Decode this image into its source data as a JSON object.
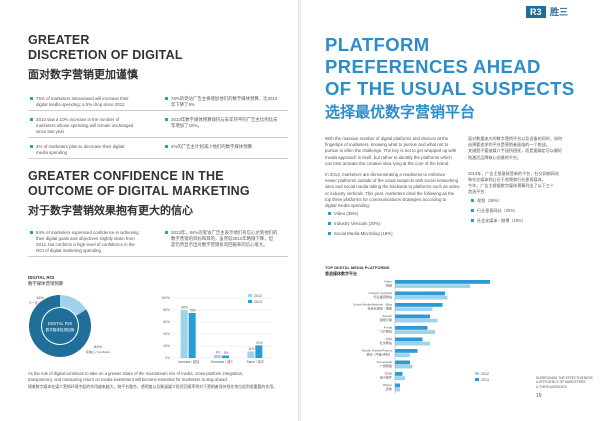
{
  "left": {
    "sec1": {
      "title_en_1": "GREATER",
      "title_en_2": "DISCRETION OF DIGITAL",
      "title_cn": "面对数字营销更加谨慎",
      "bullets_en": [
        [
          "75% of marketers interviewed will increase their",
          "digital media spending; a 5% drop since 2012"
        ],
        [
          "2013 saw a 10% increase in the number of",
          "marketers whose spending will remain unchanged",
          "since last year"
        ],
        [
          "4% of marketers plan to decrease their digital",
          "media spending"
        ]
      ],
      "bullets_cn": [
        [
          "75%的受访广告主将增加他们的数字媒体预算，比2012",
          "年下降了5%"
        ],
        [
          "2013年数字媒体预算保持与去年持平的广告主比例比去",
          "年增加了10%。"
        ],
        [
          "4%的广告主计划减少他们的数字媒体预算"
        ]
      ]
    },
    "sec2": {
      "title_en_1": "GREATER CONFIDENCE IN THE",
      "title_en_2": "OUTCOME OF DIGITAL MARKETING",
      "title_cn": "对于数字营销效果抱有更大的信心",
      "bullets_en": [
        [
          "84% of marketers expressed confidence in achieving",
          "their digital goals and objectives slightly down from",
          "2012, but confirms a high level of confidence in the",
          "ROI of digital marketing spending"
        ]
      ],
      "bullets_cn": [
        [
          "2013年，84%的受访广告主表示他们有信心达到他们的",
          "数字营销的目标和目的，虽然较2012年略微下降，但",
          "是仍然显示出对数字营销投资回报率的信心很大。"
        ]
      ]
    },
    "chart": {
      "title_en": "DIGITAL ROI",
      "title_cn": "数字媒体营销预算",
      "donut_center_1": "DIGITAL ROI",
      "donut_center_2": "数字媒体投资回报",
      "donut_labels": [
        [
          "16%",
          "不一定 / Not sure"
        ],
        [
          "84%",
          "有信心 / Confident"
        ]
      ],
      "legend": [
        "2012",
        "2013"
      ],
      "categories": [
        "Increase / 增加",
        "Decrease / 减少",
        "Same / 持平"
      ],
      "yticks": [
        "100%",
        "80%",
        "60%",
        "40%",
        "20%",
        "0%"
      ],
      "value_labels": [
        "80%",
        "75%",
        "4%",
        "5%",
        "11%",
        "21%"
      ]
    },
    "footer": {
      "en_1": "As the role of digital continues to take on a greater share of the mainstream mix of media, cross-platform integration,",
      "en_2": "transparency, and measuring return on media investment will become essential for marketers to stay ahead.",
      "cn": "随着数字媒体在媒介营销环境中起的作用越来越大，跨平台整合，透明度以及衡量媒介投资回报率将对于营销者保持领先地位起到很重要的作用。"
    }
  },
  "right": {
    "logo": "R3",
    "logo_cn": "胜三",
    "title_en_1": "PLATFORM",
    "title_en_2": "PREFERENCES AHEAD",
    "title_en_3": "OF THE USUAL SUSPECTS",
    "title_cn": "选择最优数字营销平台",
    "para1_en": [
      "With the massive number of digital platforms and devices at the",
      "fingertips of marketers, knowing what to pursue and what not to",
      "pursue is often the challenge. The key is not to get wrapped up with",
      "media approach in itself, but rather to identify the platforms which",
      "can best activate the creative idea lying at the core of the brand."
    ],
    "para2_en": [
      "In 2013, marketers are demonstrating a readiness to embrace",
      "newer platforms outside of the usual suspects with social networking",
      "sites and social media taking the backseat to platforms such as video",
      "or industry verticals. This year, marketers cited the following as the",
      "top three platforms for communications strategies according to",
      "digital media spending:"
    ],
    "list_en": [
      "Video (38%)",
      "Industry Verticals (20%)",
      "Social Media-Microblog (19%)"
    ],
    "para1_cn": [
      "面对数量庞大的数字营销平台以及设备的同时，如何",
      "选择要追求的平台是营销者面临的一个挑战。",
      "关键是不要被媒介手段所困扰，而是要确定可以最好",
      "地激活品牌核心创意的平台。"
    ],
    "para2_cn": [
      "2013年，广告主愿意接受新的平台，社交网络网站",
      "和社交媒体则让位于视频和行业垂直媒体。",
      "今年，广告主根据数字媒体预算列出了以下三个",
      "首选平台："
    ],
    "list_cn": [
      "视频（38%）",
      "行业垂直网站（20%）",
      "社会化媒体 - 微博（19%）"
    ],
    "chart": {
      "title_en": "TOP DIGITAL MEDIA PLATFORMS",
      "title_cn": "首选媒体数字平台",
      "rows": [
        [
          "Video",
          "视频"
        ],
        [
          "Industry Verticals",
          "行业垂直网站"
        ],
        [
          "Social Media/Network - Blog",
          "社会化媒体 - 博客"
        ],
        [
          "Search",
          "搜索引擎"
        ],
        [
          "Portal",
          "门户网站"
        ],
        [
          "SNS",
          "社交网站"
        ],
        [
          "Mobile (Tablet/Phone)",
          "移动（平板/手机）"
        ],
        [
          "Ad network",
          "广告网络"
        ],
        [
          "EDM",
          "电子邮件"
        ],
        [
          "Others",
          "其他"
        ]
      ],
      "legend": [
        "2012",
        "2013"
      ]
    },
    "side_note": [
      "SURROUNDS THE EFFECTIVENESS",
      "& EFFICIENCY OF MARKETERS",
      "& THEIR AGENCIES"
    ],
    "page_number": "19"
  },
  "colors": {
    "accent": "#2c9ad4",
    "light": "#9fd3ec",
    "dark": "#1f6f9a"
  },
  "chart_data": [
    {
      "type": "pie",
      "title": "DIGITAL ROI",
      "labels": [
        "Confident",
        "Not sure"
      ],
      "values": [
        84,
        16
      ]
    },
    {
      "type": "bar",
      "categories": [
        "Increase / 增加",
        "Decrease / 减少",
        "Same / 持平"
      ],
      "series": [
        {
          "name": "2012",
          "values": [
            80,
            5,
            11
          ]
        },
        {
          "name": "2013",
          "values": [
            75,
            4,
            21
          ]
        }
      ],
      "ylim": [
        0,
        100
      ]
    },
    {
      "type": "bar",
      "title": "TOP DIGITAL MEDIA PLATFORMS",
      "categories": [
        "Video",
        "Industry Verticals",
        "Social Media/Network - Blog",
        "Search",
        "Portal",
        "SNS",
        "Mobile (Tablet/Phone)",
        "Ad network",
        "EDM",
        "Others"
      ],
      "series": [
        {
          "name": "2013",
          "values": [
            38,
            20,
            19,
            14,
            13,
            11,
            9,
            6,
            3,
            2
          ]
        },
        {
          "name": "2012",
          "values": [
            30,
            21,
            15,
            17,
            16,
            14,
            6,
            7,
            4,
            2
          ]
        }
      ]
    }
  ]
}
